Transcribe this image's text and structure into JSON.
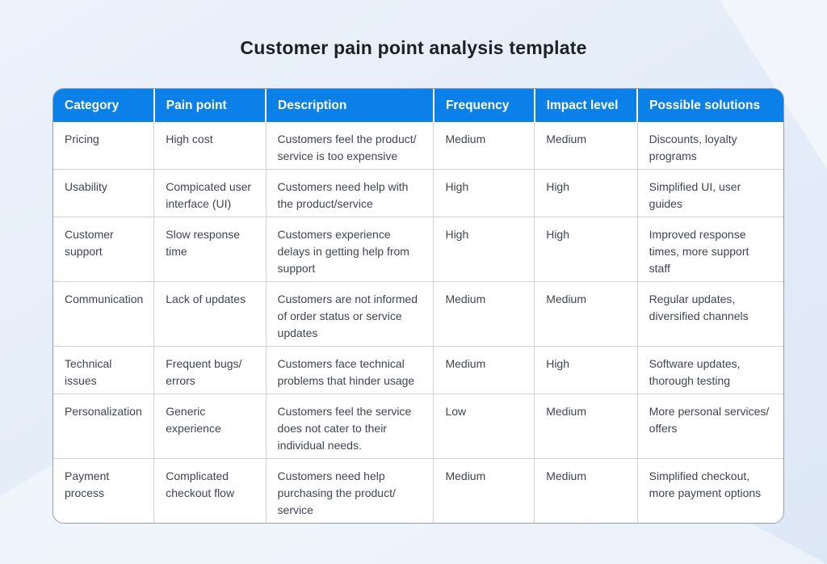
{
  "title": "Customer pain point analysis template",
  "colors": {
    "header_bg": "#0b80e8",
    "header_text": "#ffffff",
    "body_text": "#40454c",
    "grid_border": "#ccd1dd",
    "outer_border": "#959cb1",
    "title_text": "#1d2126",
    "page_bg": "#e5edf9"
  },
  "table": {
    "columns": [
      {
        "key": "category",
        "label": "Category"
      },
      {
        "key": "pain_point",
        "label": "Pain point"
      },
      {
        "key": "description",
        "label": "Description"
      },
      {
        "key": "frequency",
        "label": "Frequency"
      },
      {
        "key": "impact_level",
        "label": "Impact level"
      },
      {
        "key": "possible_solutions",
        "label": "Possible solutions"
      }
    ],
    "rows": [
      {
        "category": "Pricing",
        "pain_point": "High cost",
        "description": "Customers feel the product/\nservice is too expensive",
        "frequency": "Medium",
        "impact_level": "Medium",
        "possible_solutions": "Discounts, loyalty\nprograms"
      },
      {
        "category": "Usability",
        "pain_point": "Compicated user\ninterface (UI)",
        "description": "Customers need help with\nthe product/service",
        "frequency": "High",
        "impact_level": "High",
        "possible_solutions": "Simplified UI, user\nguides"
      },
      {
        "category": "Customer\nsupport",
        "pain_point": "Slow response\ntime",
        "description": "Customers experience\ndelays in getting help from\nsupport",
        "frequency": "High",
        "impact_level": "High",
        "possible_solutions": "Improved response\ntimes, more support\nstaff"
      },
      {
        "category": "Communication",
        "pain_point": "Lack of updates",
        "description": "Customers are not informed\nof order status or service\nupdates",
        "frequency": "Medium",
        "impact_level": "Medium",
        "possible_solutions": "Regular updates,\ndiversified channels"
      },
      {
        "category": "Technical\nissues",
        "pain_point": "Frequent bugs/\nerrors",
        "description": "Customers face technical\nproblems that hinder usage",
        "frequency": "Medium",
        "impact_level": "High",
        "possible_solutions": "Software updates,\nthorough testing"
      },
      {
        "category": "Personalization",
        "pain_point": "Generic\nexperience",
        "description": "Customers feel the service\ndoes not cater to their\nindividual needs.",
        "frequency": "Low",
        "impact_level": "Medium",
        "possible_solutions": "More personal services/\noffers"
      },
      {
        "category": "Payment\nprocess",
        "pain_point": "Complicated\ncheckout flow",
        "description": "Customers need help\npurchasing the product/\nservice",
        "frequency": "Medium",
        "impact_level": "Medium",
        "possible_solutions": "Simplified checkout,\nmore payment options"
      }
    ]
  }
}
